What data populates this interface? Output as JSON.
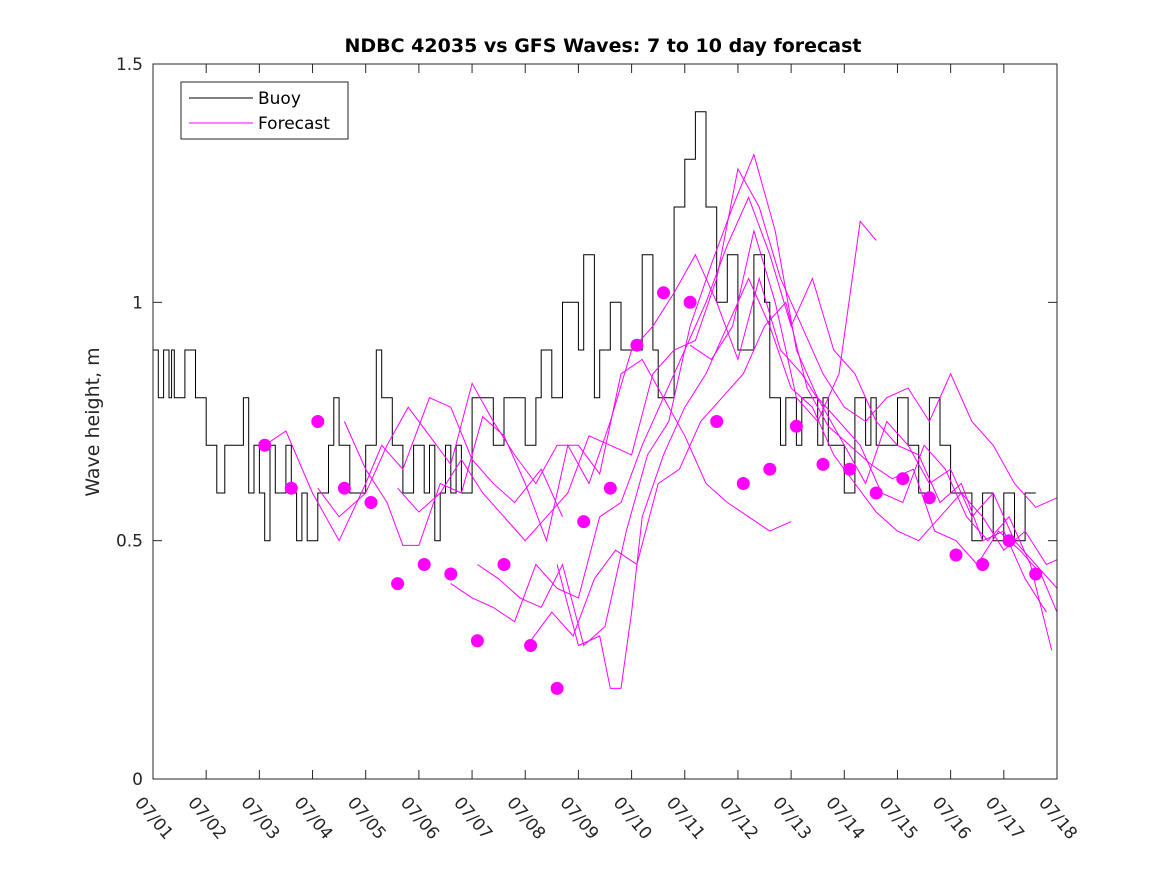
{
  "chart_data": {
    "type": "line",
    "title": "NDBC 42035 vs GFS Waves: 7 to 10 day forecast",
    "xlabel": "",
    "ylabel": "Wave height, m",
    "xlim": [
      0,
      17
    ],
    "ylim": [
      0,
      1.5
    ],
    "yticks": [
      0,
      0.5,
      1,
      1.5
    ],
    "ytick_labels": [
      "0",
      "0.5",
      "1",
      "1.5"
    ],
    "xtick_labels": [
      "07/01",
      "07/02",
      "07/03",
      "07/04",
      "07/05",
      "07/06",
      "07/07",
      "07/08",
      "07/09",
      "07/10",
      "07/11",
      "07/12",
      "07/13",
      "07/14",
      "07/15",
      "07/16",
      "07/17",
      "07/18"
    ],
    "x_units": "days since 07/01",
    "grid": false,
    "legend": {
      "position": "top-left",
      "entries": [
        "Buoy",
        "Forecast"
      ]
    },
    "colors": {
      "buoy": "#000000",
      "forecast": "#ff00ff"
    },
    "series": [
      {
        "name": "Buoy",
        "x": [
          0,
          0.1,
          0.2,
          0.3,
          0.35,
          0.4,
          0.6,
          0.8,
          1.0,
          1.1,
          1.2,
          1.25,
          1.35,
          1.5,
          1.7,
          1.8,
          1.9,
          2.0,
          2.1,
          2.2,
          2.3,
          2.5,
          2.6,
          2.7,
          2.8,
          2.9,
          3.0,
          3.1,
          3.2,
          3.3,
          3.4,
          3.5,
          3.6,
          3.7,
          3.9,
          4.0,
          4.2,
          4.3,
          4.4,
          4.5,
          4.6,
          4.7,
          4.8,
          4.9,
          5.0,
          5.1,
          5.2,
          5.3,
          5.4,
          5.5,
          5.6,
          5.7,
          5.8,
          5.9,
          6.0,
          6.2,
          6.4,
          6.5,
          6.6,
          6.8,
          7.0,
          7.2,
          7.3,
          7.5,
          7.7,
          8.0,
          8.1,
          8.3,
          8.4,
          8.6,
          8.8,
          9.0,
          9.2,
          9.4,
          9.5,
          9.6,
          9.8,
          10.0,
          10.2,
          10.4,
          10.6,
          10.8,
          11.0,
          11.2,
          11.3,
          11.5,
          11.6,
          11.8,
          11.9,
          12.0,
          12.1,
          12.2,
          12.3,
          12.4,
          12.5,
          12.6,
          12.7,
          12.8,
          13.0,
          13.2,
          13.4,
          13.5,
          13.6,
          13.8,
          14.0,
          14.2,
          14.4,
          14.6,
          14.8,
          15.0,
          15.2,
          15.4,
          15.6,
          15.8,
          16.0,
          16.2,
          16.4,
          16.6
        ],
        "values": [
          0.9,
          0.8,
          0.9,
          0.8,
          0.9,
          0.8,
          0.9,
          0.8,
          0.7,
          0.7,
          0.6,
          0.6,
          0.7,
          0.7,
          0.8,
          0.6,
          0.7,
          0.6,
          0.5,
          0.7,
          0.6,
          0.7,
          0.6,
          0.5,
          0.6,
          0.5,
          0.5,
          0.6,
          0.6,
          0.7,
          0.8,
          0.7,
          0.7,
          0.6,
          0.6,
          0.7,
          0.9,
          0.8,
          0.8,
          0.7,
          0.7,
          0.6,
          0.6,
          0.7,
          0.7,
          0.6,
          0.7,
          0.5,
          0.6,
          0.7,
          0.6,
          0.7,
          0.6,
          0.6,
          0.8,
          0.8,
          0.7,
          0.7,
          0.8,
          0.8,
          0.7,
          0.8,
          0.9,
          0.8,
          1.0,
          0.9,
          1.1,
          0.8,
          0.9,
          1.0,
          0.9,
          0.9,
          1.1,
          0.9,
          0.8,
          0.8,
          1.2,
          1.3,
          1.4,
          1.2,
          1.0,
          1.1,
          0.9,
          0.9,
          1.1,
          1.0,
          0.8,
          0.7,
          0.8,
          0.8,
          0.7,
          0.8,
          0.8,
          0.8,
          0.7,
          0.8,
          0.7,
          0.7,
          0.6,
          0.8,
          0.7,
          0.8,
          0.7,
          0.7,
          0.8,
          0.7,
          0.6,
          0.8,
          0.7,
          0.6,
          0.6,
          0.5,
          0.6,
          0.5,
          0.6,
          0.5,
          0.6,
          0.6
        ]
      },
      {
        "name": "Forecast",
        "x": [
          2.1,
          2.5,
          3.0,
          3.5,
          4.0,
          4.3,
          4.7,
          5.2,
          5.6,
          6.0,
          6.4,
          6.8,
          7.3,
          7.7
        ],
        "values": [
          0.7,
          0.73,
          0.6,
          0.5,
          0.62,
          0.7,
          0.65,
          0.8,
          0.78,
          0.67,
          0.62,
          0.58,
          0.65,
          0.55
        ]
      },
      {
        "name": "Forecast",
        "x": [
          3.1,
          3.5,
          4.0,
          4.4,
          4.8,
          5.2,
          5.6,
          6.0,
          6.4,
          6.8,
          7.2,
          7.6,
          8.0,
          8.4,
          8.8,
          9.2,
          9.6,
          10.0,
          10.4,
          10.8,
          11.2,
          11.6,
          12.0
        ],
        "values": [
          0.61,
          0.55,
          0.6,
          0.7,
          0.78,
          0.72,
          0.66,
          0.83,
          0.75,
          0.68,
          0.62,
          0.7,
          0.7,
          0.64,
          0.85,
          0.88,
          0.8,
          0.72,
          0.62,
          0.58,
          0.55,
          0.52,
          0.54
        ]
      },
      {
        "name": "Forecast",
        "x": [
          3.6,
          4.0,
          4.4,
          4.7,
          5.0,
          5.4,
          5.8,
          6.2,
          6.6,
          7.0,
          7.4,
          7.8,
          8.2,
          8.6,
          9.0,
          9.4,
          9.8,
          10.2,
          10.6,
          11.0,
          11.4,
          11.8,
          12.2,
          12.6,
          13.0,
          13.4,
          13.8,
          14.2,
          14.6,
          15.0,
          15.4,
          15.8,
          16.2,
          16.6,
          17.0
        ],
        "values": [
          0.75,
          0.65,
          0.58,
          0.49,
          0.49,
          0.62,
          0.6,
          0.76,
          0.72,
          0.62,
          0.5,
          0.7,
          0.62,
          0.75,
          0.9,
          0.95,
          1.02,
          1.1,
          1.0,
          0.88,
          1.05,
          0.9,
          0.85,
          0.78,
          0.7,
          0.62,
          0.75,
          0.7,
          0.62,
          0.65,
          0.55,
          0.6,
          0.5,
          0.45,
          0.4
        ]
      },
      {
        "name": "Forecast",
        "x": [
          4.6,
          5.0,
          5.4,
          5.8,
          6.2,
          6.6,
          7.0,
          7.4,
          7.8,
          8.2,
          8.6,
          9.0,
          9.4,
          9.8,
          10.2,
          10.6,
          11.0,
          11.4,
          11.8,
          12.2,
          12.6,
          13.0,
          13.4,
          13.8,
          14.2,
          14.6,
          15.0,
          15.4,
          15.8,
          16.2,
          16.6,
          17.0
        ],
        "values": [
          0.61,
          0.56,
          0.6,
          0.67,
          0.6,
          0.55,
          0.5,
          0.55,
          0.6,
          0.72,
          0.7,
          0.68,
          0.85,
          0.9,
          0.92,
          1.05,
          1.28,
          1.2,
          1.05,
          0.95,
          0.85,
          0.78,
          0.75,
          0.8,
          0.82,
          0.75,
          0.85,
          0.75,
          0.7,
          0.62,
          0.57,
          0.59
        ]
      },
      {
        "name": "Forecast",
        "x": [
          5.6,
          6.0,
          6.4,
          6.8,
          7.2,
          7.6,
          8.0,
          8.4,
          8.8,
          9.2,
          9.6,
          10.0,
          10.4,
          10.8,
          11.2,
          11.6,
          12.0,
          12.4,
          12.8,
          13.2,
          13.6,
          14.0,
          14.4,
          14.8,
          15.2,
          15.6,
          16.0,
          16.4,
          16.8
        ],
        "values": [
          0.41,
          0.38,
          0.36,
          0.33,
          0.45,
          0.4,
          0.38,
          0.55,
          0.58,
          0.7,
          0.8,
          0.9,
          1.0,
          1.12,
          1.22,
          1.1,
          0.95,
          1.05,
          0.9,
          0.85,
          0.75,
          0.7,
          0.68,
          0.58,
          0.62,
          0.5,
          0.52,
          0.42,
          0.35
        ]
      },
      {
        "name": "Forecast",
        "x": [
          6.1,
          6.5,
          6.9,
          7.3,
          7.7,
          8.1,
          8.5,
          8.9,
          9.3,
          9.7,
          10.1,
          10.5,
          10.9,
          11.3,
          11.7,
          12.1,
          12.5,
          12.9,
          13.3,
          13.7,
          14.1,
          14.5,
          14.9,
          15.3,
          15.7,
          16.1,
          16.5,
          16.9
        ],
        "values": [
          0.45,
          0.42,
          0.38,
          0.36,
          0.45,
          0.28,
          0.32,
          0.52,
          0.68,
          0.75,
          0.95,
          1.08,
          1.2,
          1.31,
          1.15,
          0.9,
          0.8,
          0.75,
          0.7,
          0.6,
          0.58,
          0.7,
          0.65,
          0.55,
          0.5,
          0.55,
          0.45,
          0.27
        ]
      },
      {
        "name": "Forecast",
        "x": [
          7.1,
          7.5,
          7.9,
          8.3,
          8.7,
          9.1,
          9.5,
          9.9,
          10.3,
          10.7,
          11.1,
          11.5,
          11.9,
          12.3,
          12.7,
          13.1,
          13.5,
          13.9,
          14.3,
          14.7,
          15.1,
          15.5,
          15.9,
          16.3,
          16.7,
          17.0
        ],
        "values": [
          0.29,
          0.35,
          0.3,
          0.42,
          0.48,
          0.45,
          0.62,
          0.65,
          0.75,
          0.8,
          0.85,
          0.95,
          1.0,
          0.82,
          0.74,
          0.7,
          0.66,
          0.63,
          0.65,
          0.52,
          0.5,
          0.45,
          0.52,
          0.48,
          0.43,
          0.35
        ]
      },
      {
        "name": "Forecast",
        "x": [
          7.6,
          8.0,
          8.4,
          8.6,
          8.8,
          9.0,
          9.2,
          9.6,
          10.0,
          10.4,
          10.8,
          11.2,
          11.6,
          12.0,
          12.4,
          12.8,
          13.2,
          13.6,
          14.0,
          14.4,
          14.8,
          15.2,
          15.6,
          16.0,
          16.4,
          16.8,
          17.0
        ],
        "values": [
          0.45,
          0.28,
          0.3,
          0.19,
          0.19,
          0.35,
          0.55,
          0.68,
          0.78,
          0.85,
          0.95,
          1.05,
          0.95,
          0.82,
          0.78,
          0.68,
          0.62,
          0.56,
          0.52,
          0.5,
          0.55,
          0.6,
          0.55,
          0.48,
          0.52,
          0.45,
          0.46
        ]
      },
      {
        "name": "Forecast",
        "x": [
          10.1,
          10.5,
          10.9,
          11.3,
          11.7,
          12.1,
          12.5,
          12.9,
          13.3,
          13.6
        ],
        "values": [
          0.91,
          0.88,
          0.95,
          1.15,
          1.0,
          0.8,
          0.75,
          0.85,
          1.17,
          1.13
        ]
      }
    ],
    "markers": {
      "name": "Forecast",
      "x": [
        2.1,
        2.6,
        3.1,
        3.6,
        4.1,
        4.6,
        5.1,
        5.6,
        6.1,
        6.6,
        7.1,
        7.6,
        8.1,
        8.6,
        9.1,
        9.6,
        10.1,
        10.6,
        11.1,
        11.6,
        12.1,
        12.6,
        13.1,
        13.6,
        14.1,
        14.6,
        15.1,
        15.6,
        16.1,
        16.6
      ],
      "values": [
        0.7,
        0.61,
        0.75,
        0.61,
        0.58,
        0.41,
        0.45,
        0.43,
        0.29,
        0.45,
        0.28,
        0.19,
        0.54,
        0.61,
        0.91,
        1.02,
        1.0,
        0.75,
        0.62,
        0.65,
        0.74,
        0.66,
        0.65,
        0.6,
        0.63,
        0.59,
        0.47,
        0.45,
        0.5,
        0.43
      ]
    }
  }
}
